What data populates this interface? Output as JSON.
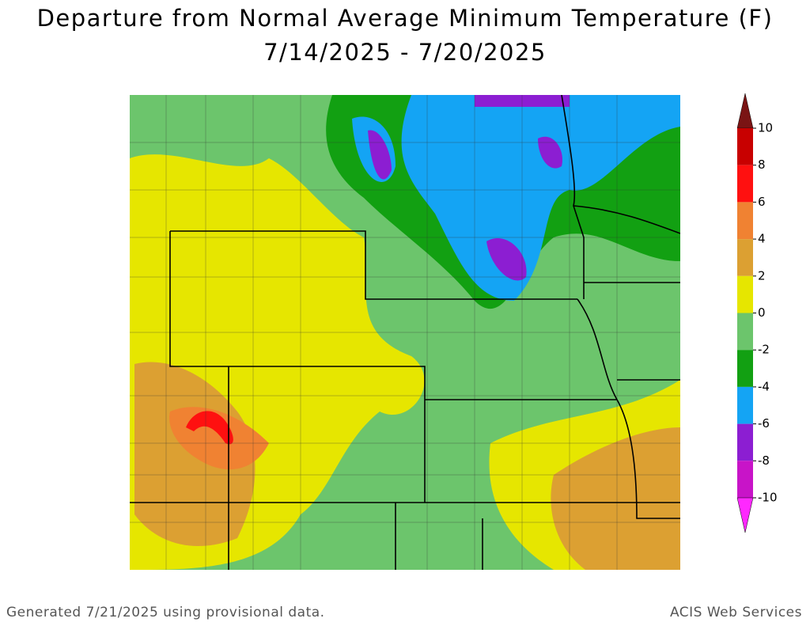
{
  "header": {
    "title": "Departure from Normal Average Minimum Temperature (F)",
    "subtitle": "7/14/2025 - 7/20/2025"
  },
  "legend": {
    "ticks": [
      10,
      8,
      6,
      4,
      2,
      0,
      -2,
      -4,
      -6,
      -8,
      -10
    ],
    "colors": [
      "#7a1414",
      "#c80000",
      "#ff1010",
      "#f08232",
      "#dca032",
      "#e6e600",
      "#6cc56c",
      "#12a012",
      "#14a4f4",
      "#8c1ed2",
      "#c814c8",
      "#ff28ff"
    ]
  },
  "footer": {
    "left": "Generated 7/21/2025 using provisional data.",
    "right": "ACIS Web Services"
  }
}
